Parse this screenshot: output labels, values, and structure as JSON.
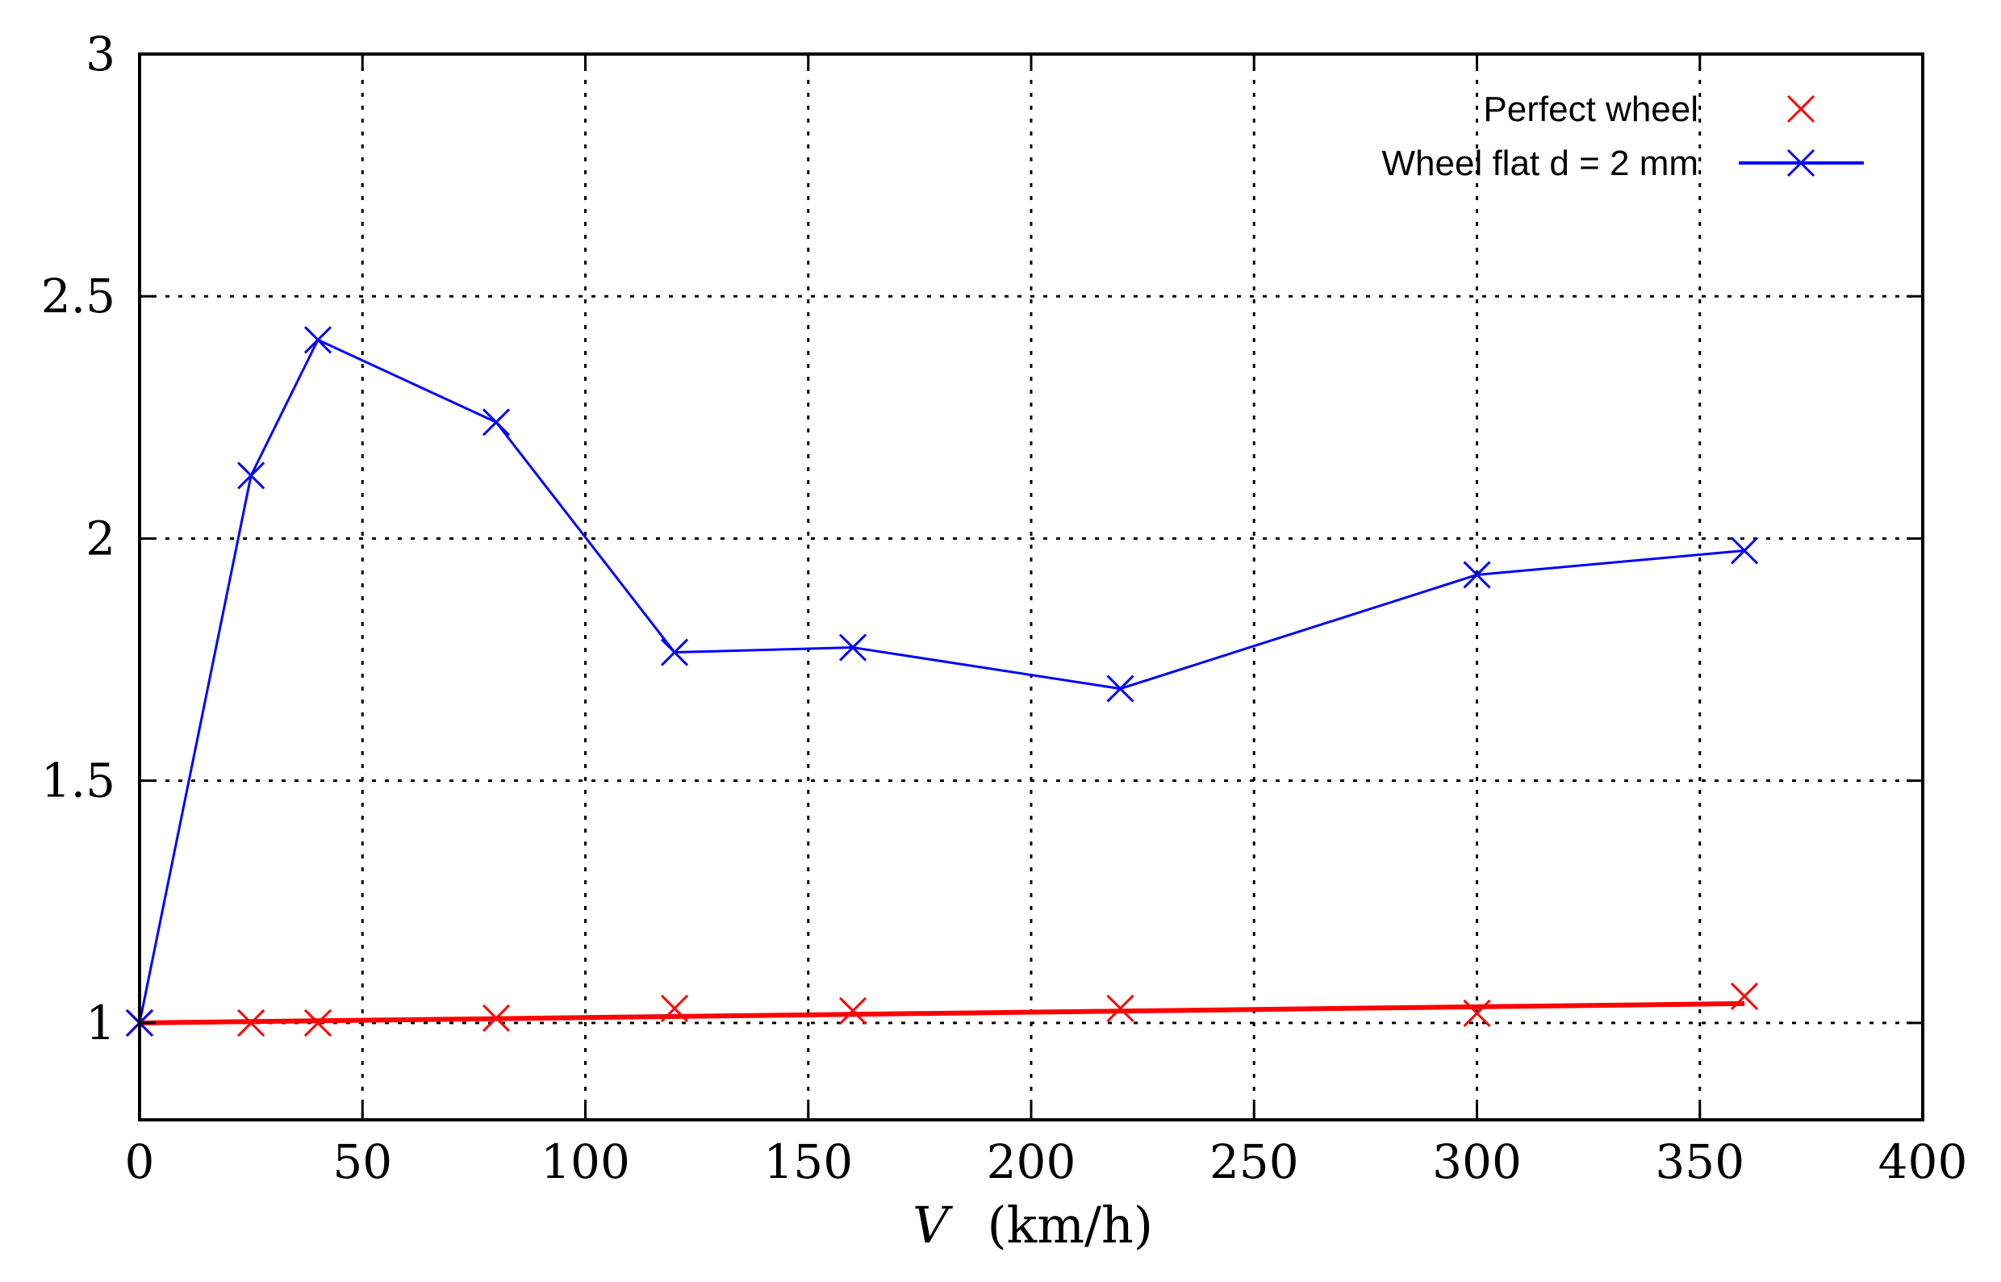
{
  "chart_data": {
    "type": "line",
    "title": "",
    "xlabel": "V (km/h)",
    "xlabel_parts": {
      "var": "V",
      "unit": "(km/h)"
    },
    "ylabel": "",
    "xlim": [
      0,
      400
    ],
    "ylim": [
      0.8,
      3
    ],
    "xticks": [
      0,
      50,
      100,
      150,
      200,
      250,
      300,
      350,
      400
    ],
    "yticks": [
      1,
      1.5,
      2,
      2.5,
      3
    ],
    "x_tick_labels": [
      "0",
      "50",
      "100",
      "150",
      "200",
      "250",
      "300",
      "350",
      "400"
    ],
    "y_tick_labels": [
      "1",
      "1.5",
      "2",
      "2.5",
      "3"
    ],
    "grid": true,
    "legend_position": "top-right",
    "series": [
      {
        "name": "Perfect wheel",
        "color": "#ff0000",
        "style": "points",
        "marker": "x",
        "x": [
          0,
          25,
          40,
          80,
          120,
          160,
          220,
          300,
          360
        ],
        "y": [
          1.0,
          1.0,
          1.0,
          1.01,
          1.03,
          1.025,
          1.03,
          1.02,
          1.055
        ]
      },
      {
        "name": "Perfect wheel fit",
        "color": "#ff0000",
        "style": "line",
        "in_legend": false,
        "x": [
          0,
          360
        ],
        "y": [
          1.0,
          1.04
        ]
      },
      {
        "name": "Wheel flat d = 2 mm",
        "color": "#0000ff",
        "style": "linespoints",
        "marker": "x",
        "x": [
          0,
          25,
          40,
          80,
          120,
          160,
          220,
          300,
          360
        ],
        "y": [
          1.0,
          2.13,
          2.41,
          2.24,
          1.765,
          1.775,
          1.69,
          1.925,
          1.975
        ]
      }
    ]
  }
}
